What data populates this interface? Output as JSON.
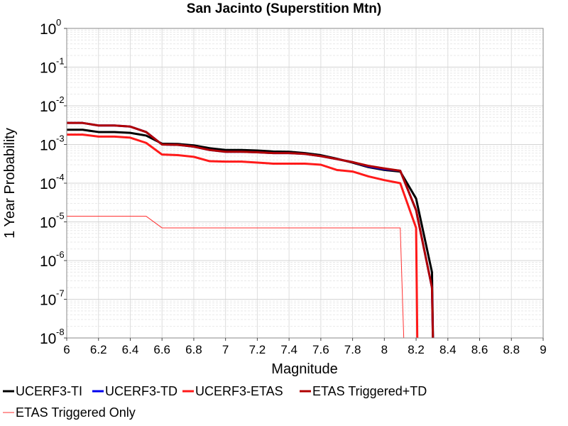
{
  "chart_data": {
    "type": "line",
    "title": "San Jacinto (Superstition Mtn)",
    "xlabel": "Magnitude",
    "ylabel": "1 Year Probability",
    "xlim": [
      6,
      9
    ],
    "ylim": [
      1e-08,
      1
    ],
    "yscale": "log",
    "grid": true,
    "legend_placement": "bottom",
    "x_ticks": [
      "6",
      "6.2",
      "6.4",
      "6.6",
      "6.8",
      "7",
      "7.2",
      "7.4",
      "7.6",
      "7.8",
      "8",
      "8.2",
      "8.4",
      "8.6",
      "8.8",
      "9"
    ],
    "y_ticks": [
      {
        "base": "10",
        "exp": "0"
      },
      {
        "base": "10",
        "exp": "-1"
      },
      {
        "base": "10",
        "exp": "-2"
      },
      {
        "base": "10",
        "exp": "-3"
      },
      {
        "base": "10",
        "exp": "-4"
      },
      {
        "base": "10",
        "exp": "-5"
      },
      {
        "base": "10",
        "exp": "-6"
      },
      {
        "base": "10",
        "exp": "-7"
      },
      {
        "base": "10",
        "exp": "-8"
      }
    ],
    "series": [
      {
        "name": "UCERF3-TI",
        "color": "#000000",
        "width": 3,
        "x": [
          6.0,
          6.1,
          6.2,
          6.3,
          6.4,
          6.5,
          6.6,
          6.7,
          6.8,
          6.9,
          7.0,
          7.1,
          7.2,
          7.3,
          7.4,
          7.5,
          7.6,
          7.7,
          7.8,
          7.9,
          8.0,
          8.1,
          8.2,
          8.3,
          8.31
        ],
        "y": [
          0.0024,
          0.0024,
          0.0021,
          0.0021,
          0.002,
          0.0017,
          0.00105,
          0.00103,
          0.00095,
          0.0008,
          0.00072,
          0.00072,
          0.0007,
          0.00066,
          0.00065,
          0.0006,
          0.00053,
          0.00043,
          0.00034,
          0.00026,
          0.00022,
          0.0002,
          4e-05,
          5e-07,
          1e-09
        ]
      },
      {
        "name": "UCERF3-TD",
        "color": "#0000ee",
        "width": 3,
        "x": [
          6.0,
          6.1,
          6.2,
          6.3,
          6.4,
          6.5,
          6.6,
          6.7,
          6.8,
          6.9,
          7.0,
          7.1,
          7.2,
          7.3,
          7.4,
          7.5,
          7.6,
          7.7,
          7.8,
          7.9,
          8.0,
          8.1,
          8.2,
          8.3,
          8.31
        ],
        "y": [
          0.0036,
          0.0036,
          0.0031,
          0.0031,
          0.0029,
          0.0021,
          0.001,
          0.00098,
          0.00088,
          0.00072,
          0.00065,
          0.00065,
          0.00063,
          0.0006,
          0.0006,
          0.00057,
          0.0005,
          0.00042,
          0.00035,
          0.00027,
          0.00023,
          0.00021,
          2e-05,
          2e-07,
          1e-09
        ]
      },
      {
        "name": "UCERF3-ETAS",
        "color": "#ff1a1a",
        "width": 3,
        "x": [
          6.0,
          6.1,
          6.2,
          6.3,
          6.4,
          6.5,
          6.6,
          6.7,
          6.8,
          6.9,
          7.0,
          7.1,
          7.2,
          7.3,
          7.4,
          7.5,
          7.6,
          7.7,
          7.8,
          7.9,
          8.0,
          8.1,
          8.2,
          8.21
        ],
        "y": [
          0.0018,
          0.0018,
          0.0016,
          0.0016,
          0.0015,
          0.0011,
          0.00055,
          0.00053,
          0.00048,
          0.00037,
          0.00036,
          0.00036,
          0.00034,
          0.00032,
          0.00032,
          0.00032,
          0.0003,
          0.00022,
          0.0002,
          0.00015,
          0.00012,
          0.0001,
          7e-06,
          1e-09
        ]
      },
      {
        "name": "ETAS Triggered+TD",
        "color": "#b00000",
        "width": 3,
        "x": [
          6.0,
          6.1,
          6.2,
          6.3,
          6.4,
          6.5,
          6.6,
          6.7,
          6.8,
          6.9,
          7.0,
          7.1,
          7.2,
          7.3,
          7.4,
          7.5,
          7.6,
          7.7,
          7.8,
          7.9,
          8.0,
          8.1,
          8.2,
          8.3,
          8.31
        ],
        "y": [
          0.0036,
          0.0036,
          0.0031,
          0.0031,
          0.0029,
          0.0021,
          0.001,
          0.00098,
          0.00088,
          0.00072,
          0.00065,
          0.00065,
          0.00063,
          0.0006,
          0.0006,
          0.00057,
          0.0005,
          0.00042,
          0.00035,
          0.00028,
          0.00024,
          0.00021,
          2e-05,
          2e-07,
          1e-09
        ]
      },
      {
        "name": "ETAS Triggered Only",
        "color": "#ff3333",
        "width": 1,
        "x": [
          6.0,
          6.5,
          6.6,
          8.1,
          8.13
        ],
        "y": [
          1.4e-05,
          1.4e-05,
          7e-06,
          7e-06,
          1e-09
        ]
      }
    ]
  }
}
